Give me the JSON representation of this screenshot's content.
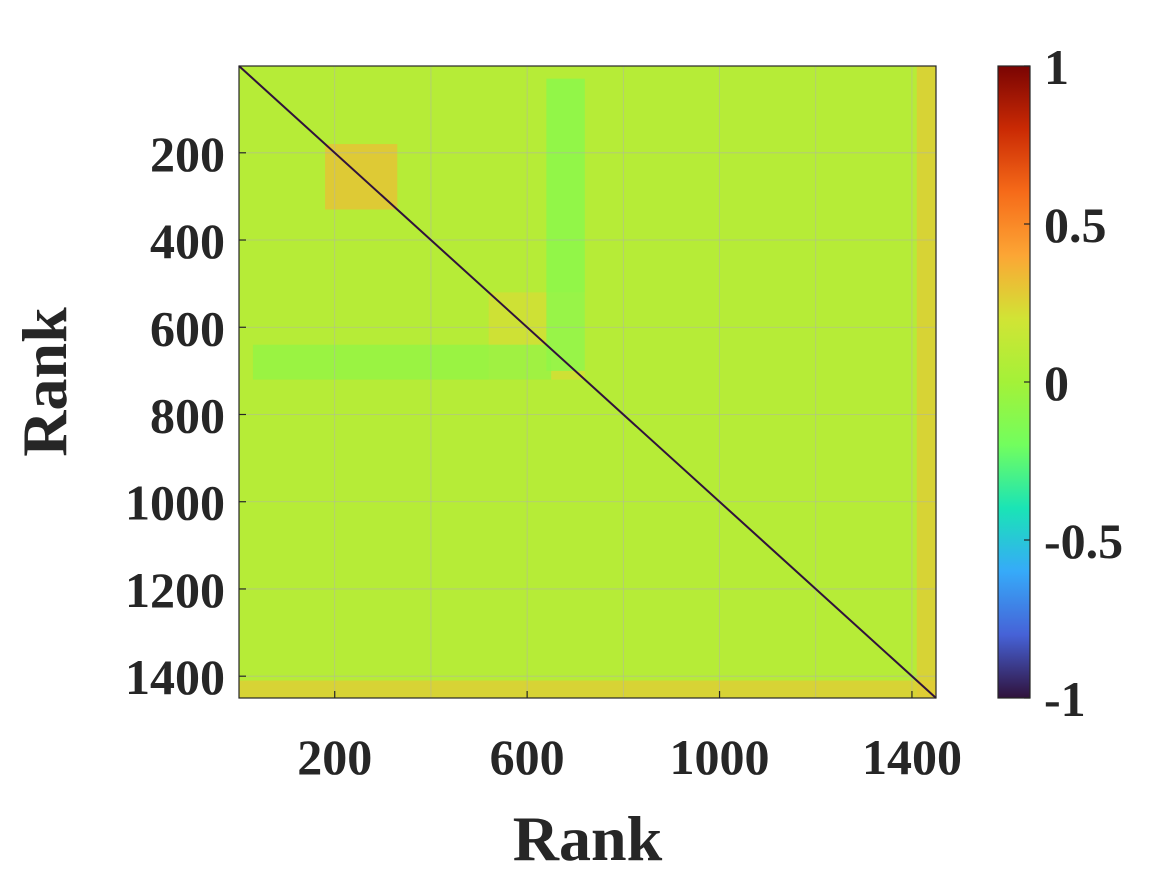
{
  "chart_data": {
    "type": "heatmap",
    "title": "",
    "xlabel": "Rank",
    "ylabel": "Rank",
    "xlim": [
      1,
      1450
    ],
    "ylim": [
      1,
      1450
    ],
    "y_reversed": true,
    "x_ticks": [
      200,
      600,
      1000,
      1400
    ],
    "x_tick_labels": [
      "200",
      "600",
      "1000",
      "1400"
    ],
    "y_ticks": [
      200,
      400,
      600,
      800,
      1000,
      1200,
      1400
    ],
    "y_tick_labels": [
      "200",
      "400",
      "600",
      "800",
      "1000",
      "1200",
      "1400"
    ],
    "grid": true,
    "colormap": "turbo",
    "colorbar": {
      "range": [
        -1,
        1
      ],
      "ticks": [
        1,
        0.5,
        0,
        -0.5,
        -1
      ],
      "tick_labels": [
        "1",
        "0.5",
        "0",
        "-0.5",
        "-1"
      ],
      "position": "right"
    },
    "matrix_summary": {
      "background_value": 0.08,
      "diagonal_value": -1,
      "blocks": [
        {
          "rows": [
            180,
            330
          ],
          "cols": [
            180,
            330
          ],
          "value": 0.32
        },
        {
          "rows": [
            520,
            720
          ],
          "cols": [
            520,
            720
          ],
          "value": 0.22
        },
        {
          "rows": [
            1,
            1450
          ],
          "cols": [
            1410,
            1450
          ],
          "value": 0.28
        },
        {
          "rows": [
            1410,
            1450
          ],
          "cols": [
            1,
            1450
          ],
          "value": 0.28
        },
        {
          "rows": [
            30,
            700
          ],
          "cols": [
            640,
            720
          ],
          "value": -0.12
        },
        {
          "rows": [
            640,
            720
          ],
          "cols": [
            30,
            650
          ],
          "value": -0.08
        }
      ]
    }
  },
  "colors": {
    "axis": "#262626",
    "grid": "#b0b0b0",
    "background_field": "#a4f138"
  }
}
